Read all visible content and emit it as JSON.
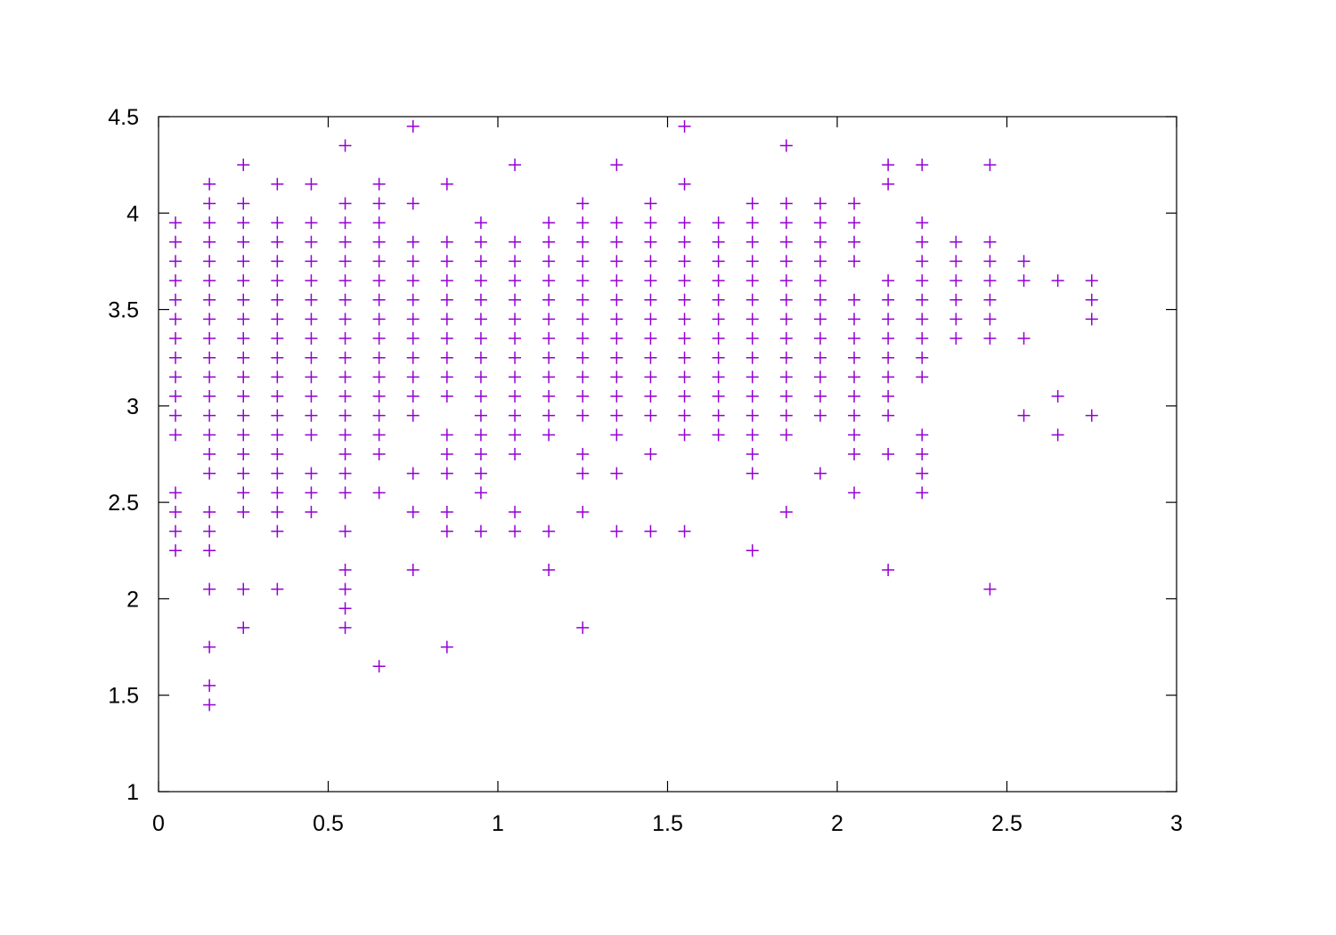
{
  "chart_data": {
    "type": "scatter",
    "color": "#9400d3",
    "marker": "plus",
    "xlim": [
      0,
      3
    ],
    "xticks": [
      0,
      0.5,
      1,
      1.5,
      2,
      2.5,
      3
    ],
    "ylim": [
      1,
      4.5
    ],
    "yticks": [
      1,
      1.5,
      2,
      2.5,
      3,
      3.5,
      4,
      4.5
    ],
    "mirror_ticks": true,
    "x": [
      0.05,
      0.05,
      0.05,
      0.05,
      0.05,
      0.05,
      0.05,
      0.05,
      0.05,
      0.05,
      0.05,
      0.05,
      0.05,
      0.05,
      0.05,
      0.05,
      0.15,
      0.15,
      0.15,
      0.15,
      0.15,
      0.15,
      0.15,
      0.15,
      0.15,
      0.15,
      0.15,
      0.15,
      0.15,
      0.15,
      0.15,
      0.15,
      0.15,
      0.15,
      0.15,
      0.15,
      0.15,
      0.15,
      0.15,
      0.25,
      0.25,
      0.25,
      0.25,
      0.25,
      0.25,
      0.25,
      0.25,
      0.25,
      0.25,
      0.25,
      0.25,
      0.25,
      0.25,
      0.25,
      0.25,
      0.25,
      0.25,
      0.25,
      0.25,
      0.35,
      0.35,
      0.35,
      0.35,
      0.35,
      0.35,
      0.35,
      0.35,
      0.35,
      0.35,
      0.35,
      0.35,
      0.35,
      0.35,
      0.35,
      0.35,
      0.35,
      0.35,
      0.35,
      0.45,
      0.45,
      0.45,
      0.45,
      0.45,
      0.45,
      0.45,
      0.45,
      0.45,
      0.45,
      0.45,
      0.45,
      0.45,
      0.45,
      0.45,
      0.45,
      0.55,
      0.55,
      0.55,
      0.55,
      0.55,
      0.55,
      0.55,
      0.55,
      0.55,
      0.55,
      0.55,
      0.55,
      0.55,
      0.55,
      0.55,
      0.55,
      0.55,
      0.55,
      0.55,
      0.55,
      0.55,
      0.55,
      0.65,
      0.65,
      0.65,
      0.65,
      0.65,
      0.65,
      0.65,
      0.65,
      0.65,
      0.65,
      0.65,
      0.65,
      0.65,
      0.65,
      0.65,
      0.65,
      0.65,
      0.75,
      0.75,
      0.75,
      0.75,
      0.75,
      0.75,
      0.75,
      0.75,
      0.75,
      0.75,
      0.75,
      0.75,
      0.75,
      0.75,
      0.75,
      0.85,
      0.85,
      0.85,
      0.85,
      0.85,
      0.85,
      0.85,
      0.85,
      0.85,
      0.85,
      0.85,
      0.85,
      0.85,
      0.85,
      0.85,
      0.85,
      0.95,
      0.95,
      0.95,
      0.95,
      0.95,
      0.95,
      0.95,
      0.95,
      0.95,
      0.95,
      0.95,
      0.95,
      0.95,
      0.95,
      0.95,
      0.95,
      1.05,
      1.05,
      1.05,
      1.05,
      1.05,
      1.05,
      1.05,
      1.05,
      1.05,
      1.05,
      1.05,
      1.05,
      1.05,
      1.05,
      1.05,
      1.15,
      1.15,
      1.15,
      1.15,
      1.15,
      1.15,
      1.15,
      1.15,
      1.15,
      1.15,
      1.15,
      1.15,
      1.15,
      1.15,
      1.25,
      1.25,
      1.25,
      1.25,
      1.25,
      1.25,
      1.25,
      1.25,
      1.25,
      1.25,
      1.25,
      1.25,
      1.25,
      1.25,
      1.25,
      1.25,
      1.35,
      1.35,
      1.35,
      1.35,
      1.35,
      1.35,
      1.35,
      1.35,
      1.35,
      1.35,
      1.35,
      1.35,
      1.35,
      1.35,
      1.35,
      1.45,
      1.45,
      1.45,
      1.45,
      1.45,
      1.45,
      1.45,
      1.45,
      1.45,
      1.45,
      1.45,
      1.45,
      1.45,
      1.45,
      1.55,
      1.55,
      1.55,
      1.55,
      1.55,
      1.55,
      1.55,
      1.55,
      1.55,
      1.55,
      1.55,
      1.55,
      1.55,
      1.55,
      1.55,
      1.65,
      1.65,
      1.65,
      1.65,
      1.65,
      1.65,
      1.65,
      1.65,
      1.65,
      1.65,
      1.65,
      1.65,
      1.75,
      1.75,
      1.75,
      1.75,
      1.75,
      1.75,
      1.75,
      1.75,
      1.75,
      1.75,
      1.75,
      1.75,
      1.75,
      1.75,
      1.75,
      1.75,
      1.85,
      1.85,
      1.85,
      1.85,
      1.85,
      1.85,
      1.85,
      1.85,
      1.85,
      1.85,
      1.85,
      1.85,
      1.85,
      1.85,
      1.85,
      1.95,
      1.95,
      1.95,
      1.95,
      1.95,
      1.95,
      1.95,
      1.95,
      1.95,
      1.95,
      1.95,
      1.95,
      1.95,
      2.05,
      2.05,
      2.05,
      2.05,
      2.05,
      2.05,
      2.05,
      2.05,
      2.05,
      2.05,
      2.05,
      2.05,
      2.05,
      2.05,
      2.15,
      2.15,
      2.15,
      2.15,
      2.15,
      2.15,
      2.15,
      2.15,
      2.15,
      2.15,
      2.15,
      2.15,
      2.25,
      2.25,
      2.25,
      2.25,
      2.25,
      2.25,
      2.25,
      2.25,
      2.25,
      2.25,
      2.25,
      2.25,
      2.25,
      2.25,
      2.35,
      2.35,
      2.35,
      2.35,
      2.35,
      2.35,
      2.45,
      2.45,
      2.45,
      2.45,
      2.45,
      2.45,
      2.45,
      2.45,
      2.55,
      2.55,
      2.55,
      2.55,
      2.65,
      2.65,
      2.65,
      2.75,
      2.75,
      2.75,
      2.75
    ],
    "values": [
      3.95,
      3.85,
      3.75,
      3.65,
      3.55,
      3.45,
      3.35,
      3.25,
      3.15,
      3.05,
      2.95,
      2.85,
      2.55,
      2.45,
      2.35,
      2.25,
      4.15,
      4.05,
      3.95,
      3.85,
      3.75,
      3.65,
      3.55,
      3.45,
      3.35,
      3.25,
      3.15,
      3.05,
      2.95,
      2.85,
      2.75,
      2.65,
      2.45,
      2.35,
      2.25,
      2.05,
      1.75,
      1.55,
      1.45,
      4.25,
      4.05,
      3.95,
      3.85,
      3.75,
      3.65,
      3.55,
      3.45,
      3.35,
      3.25,
      3.15,
      3.05,
      2.95,
      2.85,
      2.75,
      2.65,
      2.55,
      2.45,
      2.05,
      1.85,
      4.15,
      3.95,
      3.85,
      3.75,
      3.65,
      3.55,
      3.45,
      3.35,
      3.25,
      3.15,
      3.05,
      2.95,
      2.85,
      2.75,
      2.65,
      2.55,
      2.45,
      2.35,
      2.05,
      4.15,
      3.95,
      3.85,
      3.75,
      3.65,
      3.55,
      3.45,
      3.35,
      3.25,
      3.15,
      3.05,
      2.95,
      2.85,
      2.65,
      2.55,
      2.45,
      4.35,
      4.05,
      3.95,
      3.85,
      3.75,
      3.65,
      3.55,
      3.45,
      3.35,
      3.25,
      3.15,
      3.05,
      2.95,
      2.85,
      2.75,
      2.65,
      2.55,
      2.35,
      2.15,
      2.05,
      1.95,
      1.85,
      4.15,
      4.05,
      3.95,
      3.85,
      3.75,
      3.65,
      3.55,
      3.45,
      3.35,
      3.25,
      3.15,
      3.05,
      2.95,
      2.85,
      2.75,
      2.55,
      1.65,
      4.45,
      4.05,
      3.85,
      3.75,
      3.65,
      3.55,
      3.45,
      3.35,
      3.25,
      3.15,
      3.05,
      2.95,
      2.65,
      2.45,
      2.15,
      4.15,
      3.85,
      3.75,
      3.65,
      3.55,
      3.45,
      3.35,
      3.25,
      3.15,
      3.05,
      2.85,
      2.75,
      2.65,
      2.45,
      2.35,
      1.75,
      3.95,
      3.85,
      3.75,
      3.65,
      3.55,
      3.45,
      3.35,
      3.25,
      3.15,
      3.05,
      2.95,
      2.85,
      2.75,
      2.65,
      2.55,
      2.35,
      4.25,
      3.85,
      3.75,
      3.65,
      3.55,
      3.45,
      3.35,
      3.25,
      3.15,
      3.05,
      2.95,
      2.85,
      2.75,
      2.45,
      2.35,
      3.95,
      3.85,
      3.75,
      3.65,
      3.55,
      3.45,
      3.35,
      3.25,
      3.15,
      3.05,
      2.95,
      2.85,
      2.35,
      2.15,
      4.05,
      3.95,
      3.85,
      3.75,
      3.65,
      3.55,
      3.45,
      3.35,
      3.25,
      3.15,
      3.05,
      2.95,
      2.75,
      2.65,
      2.45,
      1.85,
      4.25,
      3.95,
      3.85,
      3.75,
      3.65,
      3.55,
      3.45,
      3.35,
      3.25,
      3.15,
      3.05,
      2.95,
      2.85,
      2.65,
      2.35,
      4.05,
      3.95,
      3.85,
      3.75,
      3.65,
      3.55,
      3.45,
      3.35,
      3.25,
      3.15,
      3.05,
      2.95,
      2.75,
      2.35,
      4.45,
      4.15,
      3.95,
      3.85,
      3.75,
      3.65,
      3.55,
      3.45,
      3.35,
      3.25,
      3.15,
      3.05,
      2.95,
      2.85,
      2.35,
      3.95,
      3.85,
      3.75,
      3.65,
      3.55,
      3.45,
      3.35,
      3.25,
      3.15,
      3.05,
      2.95,
      2.85,
      4.05,
      3.95,
      3.85,
      3.75,
      3.65,
      3.55,
      3.45,
      3.35,
      3.25,
      3.15,
      3.05,
      2.95,
      2.85,
      2.75,
      2.65,
      2.25,
      4.35,
      4.05,
      3.95,
      3.85,
      3.75,
      3.65,
      3.55,
      3.45,
      3.35,
      3.25,
      3.15,
      3.05,
      2.95,
      2.85,
      2.45,
      4.05,
      3.95,
      3.85,
      3.75,
      3.65,
      3.55,
      3.45,
      3.35,
      3.25,
      3.15,
      3.05,
      2.95,
      2.65,
      4.05,
      3.95,
      3.85,
      3.75,
      3.55,
      3.45,
      3.35,
      3.25,
      3.15,
      3.05,
      2.95,
      2.85,
      2.75,
      2.55,
      4.25,
      4.15,
      3.65,
      3.55,
      3.45,
      3.35,
      3.25,
      3.15,
      3.05,
      2.95,
      2.75,
      2.15,
      4.25,
      3.95,
      3.85,
      3.75,
      3.65,
      3.55,
      3.45,
      3.35,
      3.25,
      3.15,
      2.85,
      2.75,
      2.65,
      2.55,
      3.85,
      3.75,
      3.65,
      3.55,
      3.45,
      3.35,
      4.25,
      3.85,
      3.75,
      3.65,
      3.55,
      3.45,
      3.35,
      2.05,
      3.75,
      3.65,
      3.35,
      2.95,
      3.65,
      3.05,
      2.85,
      3.65,
      3.55,
      3.45,
      2.95
    ]
  }
}
